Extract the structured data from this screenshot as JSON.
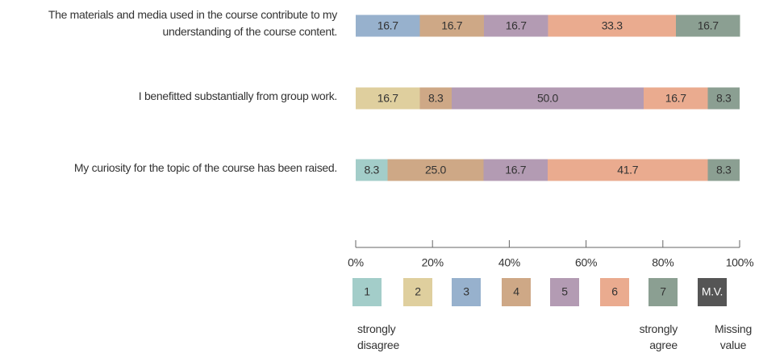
{
  "chart_data": {
    "type": "stacked_bar_horizontal",
    "categories": [
      "The materials and media used in the course contribute to my understanding of the course content.",
      "I benefitted substantially from group work.",
      "My curiosity for the topic of the course has been raised."
    ],
    "series": [
      {
        "name": "1",
        "note": "strongly disagree",
        "color": "#a3cdc9",
        "values": [
          0,
          0,
          8.3
        ],
        "value_labels": [
          null,
          null,
          "8.3"
        ]
      },
      {
        "name": "2",
        "color": "#dfcf9e",
        "values": [
          0,
          16.7,
          0
        ],
        "value_labels": [
          null,
          "16.7",
          null
        ]
      },
      {
        "name": "3",
        "color": "#97b1cd",
        "values": [
          16.7,
          0,
          0
        ],
        "value_labels": [
          "16.7",
          null,
          null
        ]
      },
      {
        "name": "4",
        "color": "#cea886",
        "values": [
          16.7,
          8.3,
          25.0
        ],
        "value_labels": [
          "16.7",
          "8.3",
          "25.0"
        ]
      },
      {
        "name": "5",
        "color": "#b39bb3",
        "values": [
          16.7,
          50.0,
          16.7
        ],
        "value_labels": [
          "16.7",
          "50.0",
          "16.7"
        ]
      },
      {
        "name": "6",
        "color": "#eaab8f",
        "values": [
          33.3,
          16.7,
          41.7
        ],
        "value_labels": [
          "33.3",
          "16.7",
          "41.7"
        ]
      },
      {
        "name": "7",
        "note": "strongly agree",
        "color": "#8b9f92",
        "values": [
          16.7,
          8.3,
          8.3
        ],
        "value_labels": [
          "16.7",
          "8.3",
          "8.3"
        ]
      },
      {
        "name": "M.V.",
        "note": "Missing value",
        "color": "#555555",
        "values": [
          0,
          0,
          0
        ],
        "value_labels": [
          null,
          null,
          null
        ]
      }
    ],
    "xlim": [
      0,
      100
    ],
    "xticks": [
      {
        "value": 0,
        "label": "0%"
      },
      {
        "value": 20,
        "label": "20%"
      },
      {
        "value": 40,
        "label": "40%"
      },
      {
        "value": 60,
        "label": "60%"
      },
      {
        "value": 80,
        "label": "80%"
      },
      {
        "value": 100,
        "label": "100%"
      }
    ]
  }
}
